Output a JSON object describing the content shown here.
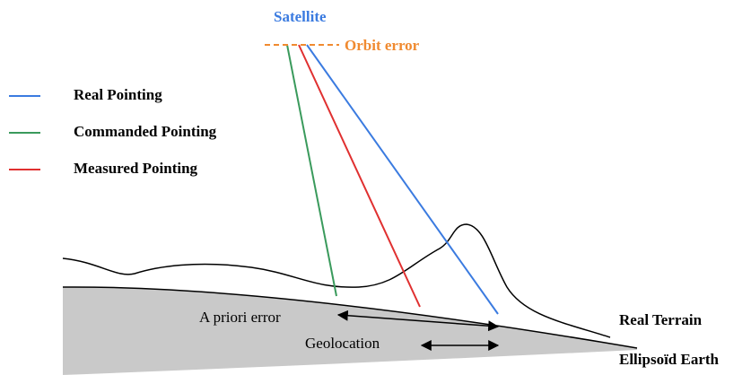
{
  "satellite": "Satellite",
  "orbit_error": "Orbit error",
  "legend": [
    {
      "label": "Real Pointing",
      "color": "#3b7be0"
    },
    {
      "label": "Commanded Pointing",
      "color": "#3a9a5c"
    },
    {
      "label": "Measured Pointing",
      "color": "#e03030"
    }
  ],
  "annotations": {
    "a_priori_error": "A priori error",
    "geolocation": "Geolocation",
    "real_terrain": "Real Terrain",
    "ellipsoid_earth": "Ellipsoïd Earth"
  }
}
